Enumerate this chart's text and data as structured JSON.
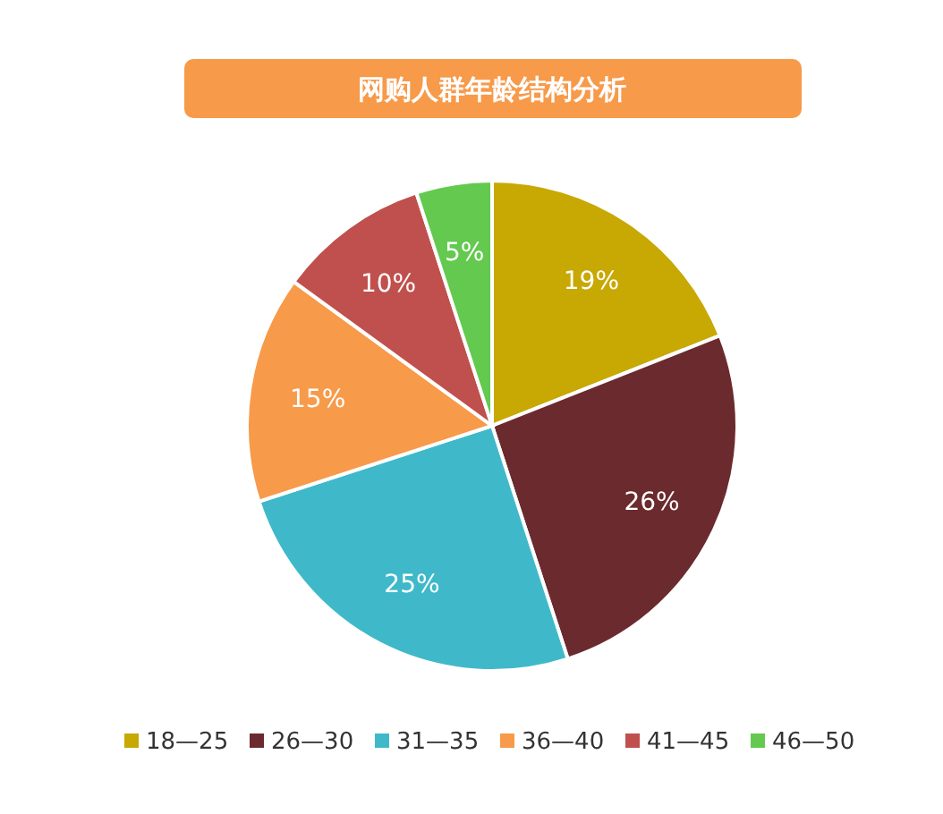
{
  "chart_data": {
    "type": "pie",
    "title": "网购人群年龄结构分析",
    "categories": [
      "18—25",
      "26—30",
      "31—35",
      "36—40",
      "41—45",
      "46—50"
    ],
    "values": [
      19,
      26,
      25,
      15,
      10,
      5
    ],
    "colors": [
      "#c8a803",
      "#6b2a2e",
      "#3fb9c9",
      "#f79a4a",
      "#c0504d",
      "#63c94f"
    ],
    "value_labels": [
      "19%",
      "26%",
      "25%",
      "15%",
      "10%",
      "5%"
    ],
    "legend": "bottom"
  }
}
